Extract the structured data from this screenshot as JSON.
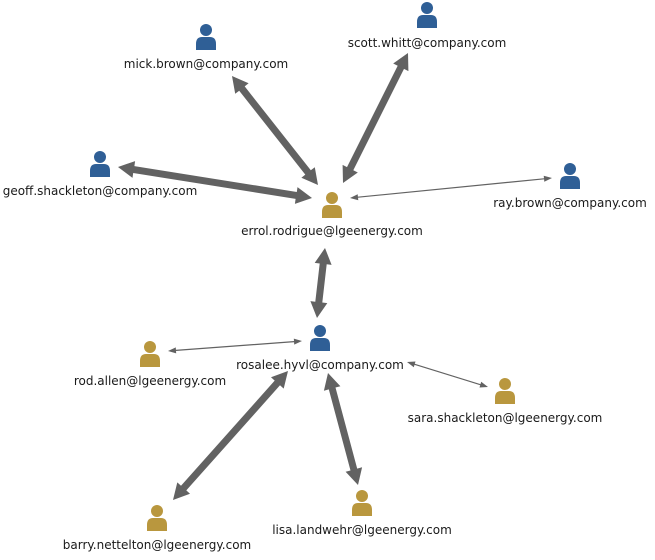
{
  "colors": {
    "company": "#2f5f96",
    "external": "#b9973e",
    "edge": "#626262"
  },
  "nodes": [
    {
      "id": "errol",
      "label": "errol.rodrigue@lgeenergy.com",
      "kind": "external",
      "icon": "user-icon"
    },
    {
      "id": "rosalee",
      "label": "rosalee.hyvl@company.com",
      "kind": "company",
      "icon": "user-icon"
    },
    {
      "id": "mick",
      "label": "mick.brown@company.com",
      "kind": "company",
      "icon": "user-icon"
    },
    {
      "id": "scott",
      "label": "scott.whitt@company.com",
      "kind": "company",
      "icon": "user-icon"
    },
    {
      "id": "geoff",
      "label": "geoff.shackleton@company.com",
      "kind": "company",
      "icon": "user-icon"
    },
    {
      "id": "ray",
      "label": "ray.brown@company.com",
      "kind": "company",
      "icon": "user-icon"
    },
    {
      "id": "rod",
      "label": "rod.allen@lgeenergy.com",
      "kind": "external",
      "icon": "user-icon"
    },
    {
      "id": "sara",
      "label": "sara.shackleton@lgeenergy.com",
      "kind": "external",
      "icon": "user-icon"
    },
    {
      "id": "barry",
      "label": "barry.nettelton@lgeenergy.com",
      "kind": "external",
      "icon": "user-icon"
    },
    {
      "id": "lisa",
      "label": "lisa.landwehr@lgeenergy.com",
      "kind": "external",
      "icon": "user-icon"
    }
  ],
  "edges": [
    {
      "source": "errol",
      "target": "mick",
      "weight": "heavy"
    },
    {
      "source": "errol",
      "target": "scott",
      "weight": "heavy"
    },
    {
      "source": "errol",
      "target": "geoff",
      "weight": "heavy"
    },
    {
      "source": "errol",
      "target": "ray",
      "weight": "light"
    },
    {
      "source": "errol",
      "target": "rosalee",
      "weight": "heavy"
    },
    {
      "source": "rosalee",
      "target": "rod",
      "weight": "light"
    },
    {
      "source": "rosalee",
      "target": "sara",
      "weight": "light"
    },
    {
      "source": "rosalee",
      "target": "barry",
      "weight": "heavy"
    },
    {
      "source": "rosalee",
      "target": "lisa",
      "weight": "heavy"
    }
  ]
}
